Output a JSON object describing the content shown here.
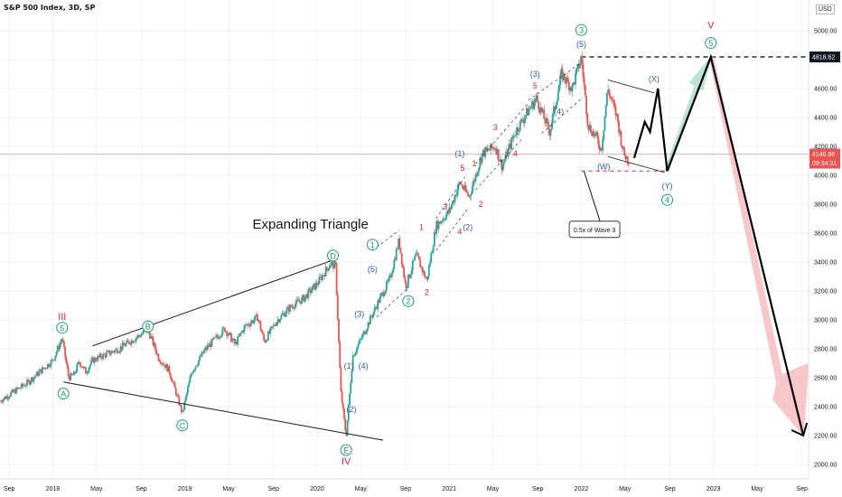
{
  "header": {
    "title": "S&P 500 Index, 3D, SP",
    "currency": "USD"
  },
  "price_labels": {
    "top_level": "4818.62",
    "current_price": "4146.86",
    "countdown": "09:34:31"
  },
  "colors": {
    "up": "#26a69a",
    "down": "#ef5350",
    "wave_green": "#1a9c84",
    "wave_blue": "#2f5fb7",
    "wave_red": "#e8243a",
    "projection_green": "#84cdb6",
    "projection_red": "#f19aa0"
  },
  "chart_data": {
    "type": "line",
    "title": "Expanding Triangle",
    "xlabel": "",
    "ylabel": "",
    "ylim": [
      1900,
      5150
    ],
    "y_ticks": [
      "2000.00",
      "2200.00",
      "2400.00",
      "2600.00",
      "2800.00",
      "3000.00",
      "3200.00",
      "3400.00",
      "3600.00",
      "3800.00",
      "4000.00",
      "4200.00",
      "4400.00",
      "4600.00",
      "4800.00",
      "5000.00"
    ],
    "x_ticks": [
      "Sep",
      "2018",
      "May",
      "Sep",
      "2019",
      "May",
      "Sep",
      "2020",
      "May",
      "Sep",
      "2021",
      "May",
      "Sep",
      "2022",
      "May",
      "Sep",
      "2023",
      "May",
      "Sep"
    ],
    "x_tick_dates": [
      2017.67,
      2018.0,
      2018.33,
      2018.67,
      2019.0,
      2019.33,
      2019.67,
      2020.0,
      2020.33,
      2020.67,
      2021.0,
      2021.33,
      2021.67,
      2022.0,
      2022.33,
      2022.67,
      2023.0,
      2023.33,
      2023.67
    ],
    "xlim": [
      2017.6,
      2023.72
    ],
    "price_series": [
      [
        2017.6,
        2440
      ],
      [
        2017.7,
        2500
      ],
      [
        2017.8,
        2560
      ],
      [
        2017.9,
        2640
      ],
      [
        2018.0,
        2720
      ],
      [
        2018.07,
        2872
      ],
      [
        2018.12,
        2600
      ],
      [
        2018.16,
        2620
      ],
      [
        2018.2,
        2710
      ],
      [
        2018.25,
        2640
      ],
      [
        2018.3,
        2720
      ],
      [
        2018.4,
        2760
      ],
      [
        2018.5,
        2800
      ],
      [
        2018.6,
        2860
      ],
      [
        2018.72,
        2930
      ],
      [
        2018.8,
        2740
      ],
      [
        2018.88,
        2650
      ],
      [
        2018.98,
        2351
      ],
      [
        2019.05,
        2640
      ],
      [
        2019.15,
        2790
      ],
      [
        2019.3,
        2940
      ],
      [
        2019.38,
        2830
      ],
      [
        2019.45,
        2950
      ],
      [
        2019.55,
        3020
      ],
      [
        2019.6,
        2850
      ],
      [
        2019.7,
        3000
      ],
      [
        2019.8,
        3090
      ],
      [
        2019.9,
        3150
      ],
      [
        2020.0,
        3250
      ],
      [
        2020.1,
        3390
      ],
      [
        2020.14,
        3370
      ],
      [
        2020.18,
        2500
      ],
      [
        2020.22,
        2192
      ],
      [
        2020.27,
        2750
      ],
      [
        2020.35,
        2900
      ],
      [
        2020.45,
        3100
      ],
      [
        2020.55,
        3280
      ],
      [
        2020.62,
        3550
      ],
      [
        2020.67,
        3230
      ],
      [
        2020.75,
        3450
      ],
      [
        2020.83,
        3270
      ],
      [
        2020.9,
        3650
      ],
      [
        2021.0,
        3750
      ],
      [
        2021.08,
        3950
      ],
      [
        2021.15,
        3850
      ],
      [
        2021.25,
        4150
      ],
      [
        2021.35,
        4200
      ],
      [
        2021.4,
        4060
      ],
      [
        2021.5,
        4300
      ],
      [
        2021.6,
        4450
      ],
      [
        2021.66,
        4530
      ],
      [
        2021.76,
        4300
      ],
      [
        2021.85,
        4700
      ],
      [
        2021.93,
        4600
      ],
      [
        2022.0,
        4818
      ],
      [
        2022.05,
        4350
      ],
      [
        2022.12,
        4250
      ],
      [
        2022.15,
        4170
      ],
      [
        2022.2,
        4600
      ],
      [
        2022.27,
        4400
      ],
      [
        2022.32,
        4150
      ],
      [
        2022.36,
        4100
      ]
    ],
    "triangle_upper": [
      [
        2018.3,
        2820
      ],
      [
        2020.14,
        3420
      ]
    ],
    "triangle_lower": [
      [
        2018.08,
        2570
      ],
      [
        2020.5,
        2168
      ]
    ],
    "projection_path": [
      [
        2022.4,
        4120
      ],
      [
        2022.48,
        4370
      ],
      [
        2022.52,
        4300
      ],
      [
        2022.58,
        4600
      ],
      [
        2022.65,
        4030
      ],
      [
        2022.98,
        4818
      ],
      [
        2023.68,
        2200
      ]
    ],
    "correction_channel_top": [
      [
        2022.2,
        4660
      ],
      [
        2022.55,
        4570
      ]
    ],
    "correction_channel_bottom": [
      [
        2022.2,
        4130
      ],
      [
        2022.63,
        4020
      ]
    ],
    "resistance_level": 4818.62,
    "support_level": 4030,
    "current_price": 4146.86,
    "annotations": [
      {
        "style": "roman",
        "text": "III",
        "x": 2018.07,
        "y": 3000
      },
      {
        "style": "circle",
        "text": "5",
        "x": 2018.07,
        "y": 2945
      },
      {
        "style": "circle",
        "text": "A",
        "x": 2018.08,
        "y": 2490
      },
      {
        "style": "circle",
        "text": "B",
        "x": 2018.72,
        "y": 2955
      },
      {
        "style": "circle",
        "text": "C",
        "x": 2018.98,
        "y": 2270
      },
      {
        "style": "circle",
        "text": "D",
        "x": 2020.12,
        "y": 3445
      },
      {
        "style": "circle",
        "text": "E",
        "x": 2020.22,
        "y": 2100
      },
      {
        "style": "roman",
        "text": "IV",
        "x": 2020.22,
        "y": 2000
      },
      {
        "style": "blue",
        "text": "(1)",
        "x": 2020.24,
        "y": 2680
      },
      {
        "style": "blue",
        "text": "(2)",
        "x": 2020.26,
        "y": 2380
      },
      {
        "style": "blue",
        "text": "(3)",
        "x": 2020.32,
        "y": 3040
      },
      {
        "style": "blue",
        "text": "(4)",
        "x": 2020.35,
        "y": 2680
      },
      {
        "style": "blue",
        "text": "(5)",
        "x": 2020.42,
        "y": 3350
      },
      {
        "style": "circle",
        "text": "1",
        "x": 2020.42,
        "y": 3520
      },
      {
        "style": "circle",
        "text": "2",
        "x": 2020.69,
        "y": 3130
      },
      {
        "style": "red",
        "text": "1",
        "x": 2020.79,
        "y": 3640
      },
      {
        "style": "red",
        "text": "2",
        "x": 2020.83,
        "y": 3190
      },
      {
        "style": "red",
        "text": "3",
        "x": 2020.97,
        "y": 3780
      },
      {
        "style": "red",
        "text": "4",
        "x": 2021.08,
        "y": 3610
      },
      {
        "style": "blue",
        "text": "(2)",
        "x": 2021.14,
        "y": 3640
      },
      {
        "style": "red",
        "text": "5",
        "x": 2021.1,
        "y": 4050
      },
      {
        "style": "blue",
        "text": "(1)",
        "x": 2021.08,
        "y": 4150
      },
      {
        "style": "red",
        "text": "1",
        "x": 2021.19,
        "y": 4080
      },
      {
        "style": "red",
        "text": "2",
        "x": 2021.24,
        "y": 3800
      },
      {
        "style": "red",
        "text": "3",
        "x": 2021.35,
        "y": 4330
      },
      {
        "style": "red",
        "text": "4",
        "x": 2021.5,
        "y": 4150
      },
      {
        "style": "red",
        "text": "5",
        "x": 2021.65,
        "y": 4620
      },
      {
        "style": "blue",
        "text": "(3)",
        "x": 2021.65,
        "y": 4700
      },
      {
        "style": "blue",
        "text": "(4)",
        "x": 2021.83,
        "y": 4440
      },
      {
        "style": "blue",
        "text": "(5)",
        "x": 2022.0,
        "y": 4905
      },
      {
        "style": "circle",
        "text": "3",
        "x": 2022.0,
        "y": 5005
      },
      {
        "style": "blue",
        "text": "(W)",
        "x": 2022.17,
        "y": 4060
      },
      {
        "style": "blue",
        "text": "(X)",
        "x": 2022.55,
        "y": 4665
      },
      {
        "style": "blue",
        "text": "(Y)",
        "x": 2022.65,
        "y": 3925
      },
      {
        "style": "circle",
        "text": "4",
        "x": 2022.65,
        "y": 3830
      },
      {
        "style": "circle",
        "text": "5",
        "x": 2022.98,
        "y": 4915
      },
      {
        "style": "roman",
        "text": "V",
        "x": 2022.98,
        "y": 5015
      }
    ],
    "callout_text": "0.5x of Wave 3"
  }
}
